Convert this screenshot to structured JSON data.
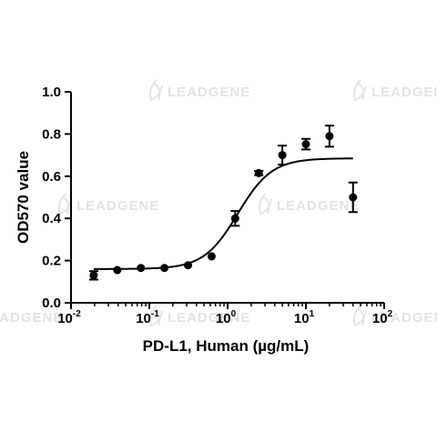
{
  "watermark": {
    "text": "LEADGENE"
  },
  "chart_data": {
    "type": "scatter",
    "xscale": "log",
    "xlabel": "PD-L1, Human (µg/mL)",
    "ylabel": "OD570 value",
    "xlim": [
      0.01,
      100
    ],
    "ylim": [
      0,
      1.0
    ],
    "x_ticks": [
      {
        "base": "10",
        "exp": "-2"
      },
      {
        "base": "10",
        "exp": "-1"
      },
      {
        "base": "10",
        "exp": "0"
      },
      {
        "base": "10",
        "exp": "1"
      },
      {
        "base": "10",
        "exp": "2"
      }
    ],
    "y_ticks": [
      "0.0",
      "0.2",
      "0.4",
      "0.6",
      "0.8",
      "1.0"
    ],
    "y_tick_values": [
      0,
      0.2,
      0.4,
      0.6,
      0.8,
      1.0
    ],
    "grid": false,
    "series": [
      {
        "points": [
          {
            "x": 0.0195,
            "y": 0.13,
            "err": 0.02
          },
          {
            "x": 0.039,
            "y": 0.155,
            "err": 0.005
          },
          {
            "x": 0.078,
            "y": 0.165,
            "err": 0.005
          },
          {
            "x": 0.156,
            "y": 0.165,
            "err": 0.005
          },
          {
            "x": 0.3125,
            "y": 0.178,
            "err": 0.005
          },
          {
            "x": 0.625,
            "y": 0.22,
            "err": 0.005
          },
          {
            "x": 1.25,
            "y": 0.4,
            "err": 0.035
          },
          {
            "x": 2.5,
            "y": 0.615,
            "err": 0.01
          },
          {
            "x": 5,
            "y": 0.7,
            "err": 0.045
          },
          {
            "x": 10,
            "y": 0.752,
            "err": 0.025
          },
          {
            "x": 20,
            "y": 0.79,
            "err": 0.05
          },
          {
            "x": 40,
            "y": 0.5,
            "err": 0.07
          }
        ]
      }
    ],
    "fit": {
      "model": "4PL",
      "bottom": 0.16,
      "top": 0.685,
      "ec50": 1.35,
      "hill": 2.0,
      "x_range": [
        0.0195,
        40
      ]
    },
    "colors": {
      "ink": "#000000",
      "watermark": "#e2e2e2"
    }
  }
}
